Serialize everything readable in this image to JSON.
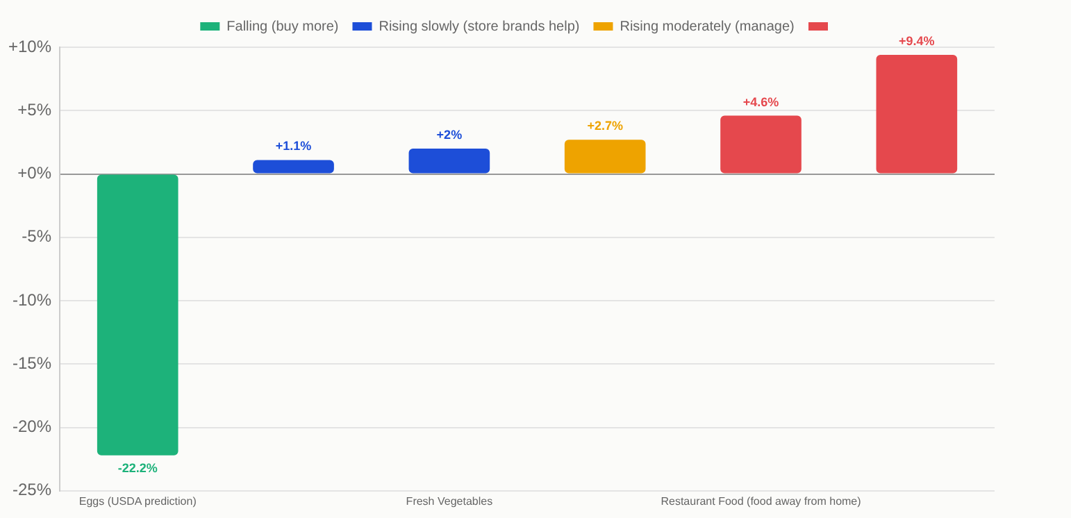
{
  "chart_data": {
    "type": "bar",
    "categories": [
      "Eggs (USDA prediction)",
      null,
      "Fresh Vegetables",
      null,
      "Restaurant Food (food away from home)",
      null
    ],
    "series": [
      {
        "name": "Falling (buy more)",
        "color": "#1db27a",
        "values": [
          -22.2,
          null,
          null,
          null,
          null,
          null
        ],
        "value_labels": [
          "-22.2%",
          null,
          null,
          null,
          null,
          null
        ]
      },
      {
        "name": "Rising slowly (store brands help)",
        "color": "#1d4ed8",
        "values": [
          null,
          1.1,
          2,
          null,
          null,
          null
        ],
        "value_labels": [
          null,
          "+1.1%",
          "+2%",
          null,
          null,
          null
        ]
      },
      {
        "name": "Rising moderately (manage)",
        "color": "#eea300",
        "values": [
          null,
          null,
          null,
          2.7,
          null,
          null
        ],
        "value_labels": [
          null,
          null,
          null,
          "+2.7%",
          null,
          null
        ]
      },
      {
        "color": "#e5484d",
        "values": [
          null,
          null,
          null,
          null,
          4.6,
          9.4
        ],
        "value_labels": [
          null,
          null,
          null,
          null,
          "+4.6%",
          "+9.4%"
        ]
      }
    ],
    "ylim": [
      -25,
      10
    ],
    "yticks": [
      {
        "value": -25,
        "label": "-25%"
      },
      {
        "value": -20,
        "label": "-20%"
      },
      {
        "value": -15,
        "label": "-15%"
      },
      {
        "value": -10,
        "label": "-10%"
      },
      {
        "value": -5,
        "label": "-5%"
      },
      {
        "value": 0,
        "label": "+0%"
      },
      {
        "value": 5,
        "label": "+5%"
      },
      {
        "value": 10,
        "label": "+10%"
      }
    ],
    "grid": "y",
    "legend": "top"
  }
}
